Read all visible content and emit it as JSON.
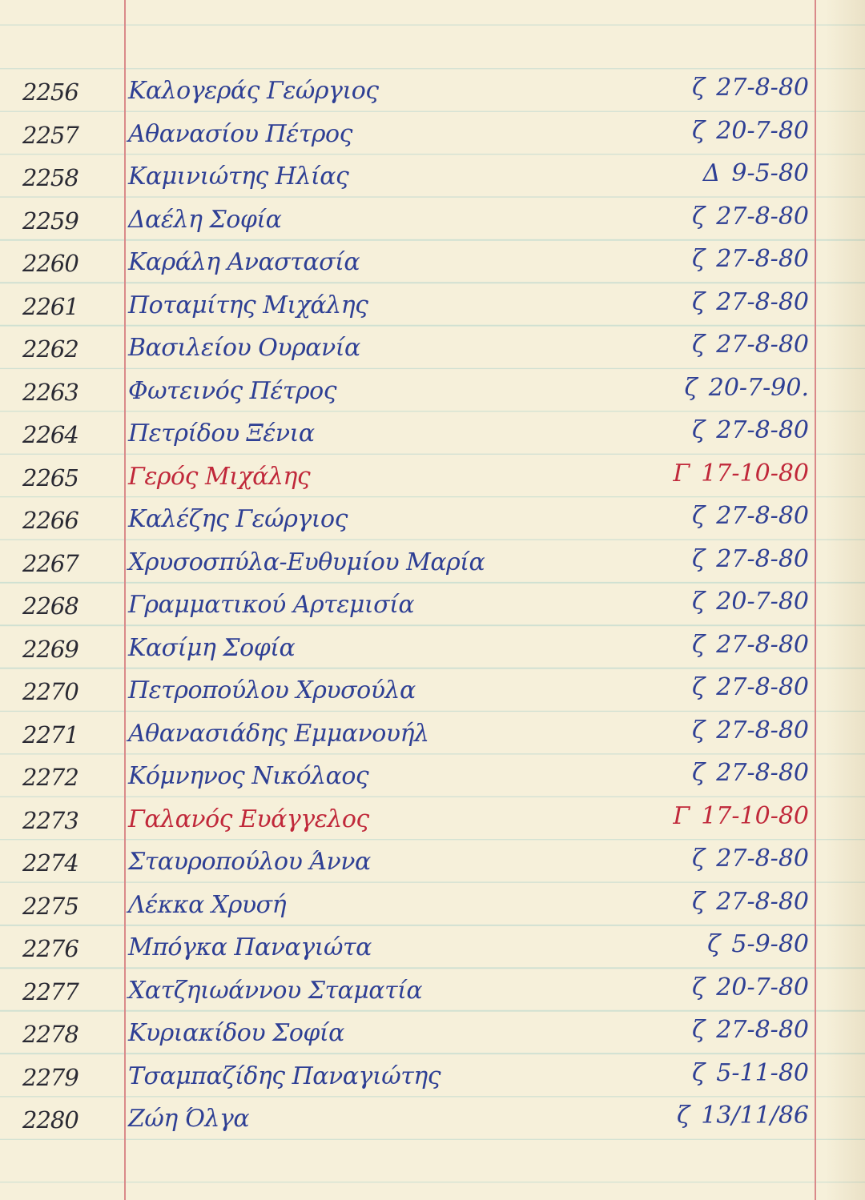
{
  "colors": {
    "paper": "#f6f0da",
    "ink_blue": "#2e3f94",
    "ink_red": "#c0283a",
    "ink_black": "#2a2a33",
    "margin_line": "#d98a8a"
  },
  "entries": [
    {
      "number": "2256",
      "name": "Καλογεράς Γεώργιος",
      "class": "ζ",
      "date": "27-8-80",
      "ink": "blue"
    },
    {
      "number": "2257",
      "name": "Αθανασίου Πέτρος",
      "class": "ζ",
      "date": "20-7-80",
      "ink": "blue"
    },
    {
      "number": "2258",
      "name": "Καμινιώτης Ηλίας",
      "class": "Δ",
      "date": "9-5-80",
      "ink": "blue"
    },
    {
      "number": "2259",
      "name": "Δαέλη Σοφία",
      "class": "ζ",
      "date": "27-8-80",
      "ink": "blue"
    },
    {
      "number": "2260",
      "name": "Καράλη Αναστασία",
      "class": "ζ",
      "date": "27-8-80",
      "ink": "blue"
    },
    {
      "number": "2261",
      "name": "Ποταμίτης Μιχάλης",
      "class": "ζ",
      "date": "27-8-80",
      "ink": "blue"
    },
    {
      "number": "2262",
      "name": "Βασιλείου Ουρανία",
      "class": "ζ",
      "date": "27-8-80",
      "ink": "blue"
    },
    {
      "number": "2263",
      "name": "Φωτεινός Πέτρος",
      "class": "ζ",
      "date": "20-7-90.",
      "ink": "blue"
    },
    {
      "number": "2264",
      "name": "Πετρίδου Ξένια",
      "class": "ζ",
      "date": "27-8-80",
      "ink": "blue"
    },
    {
      "number": "2265",
      "name": "Γερός Μιχάλης",
      "class": "Γ",
      "date": "17-10-80",
      "ink": "red"
    },
    {
      "number": "2266",
      "name": "Καλέζης Γεώργιος",
      "class": "ζ",
      "date": "27-8-80",
      "ink": "blue"
    },
    {
      "number": "2267",
      "name": "Χρυσοσπύλα-Ευθυμίου Μαρία",
      "class": "ζ",
      "date": "27-8-80",
      "ink": "blue"
    },
    {
      "number": "2268",
      "name": "Γραμματικού Αρτεμισία",
      "class": "ζ",
      "date": "20-7-80",
      "ink": "blue"
    },
    {
      "number": "2269",
      "name": "Κασίμη Σοφία",
      "class": "ζ",
      "date": "27-8-80",
      "ink": "blue"
    },
    {
      "number": "2270",
      "name": "Πετροπούλου Χρυσούλα",
      "class": "ζ",
      "date": "27-8-80",
      "ink": "blue"
    },
    {
      "number": "2271",
      "name": "Αθανασιάδης Εμμανουήλ",
      "class": "ζ",
      "date": "27-8-80",
      "ink": "blue"
    },
    {
      "number": "2272",
      "name": "Κόμνηνος Νικόλαος",
      "class": "ζ",
      "date": "27-8-80",
      "ink": "blue"
    },
    {
      "number": "2273",
      "name": "Γαλανός Ευάγγελος",
      "class": "Γ",
      "date": "17-10-80",
      "ink": "red"
    },
    {
      "number": "2274",
      "name": "Σταυροπούλου Άννα",
      "class": "ζ",
      "date": "27-8-80",
      "ink": "blue"
    },
    {
      "number": "2275",
      "name": "Λέκκα Χρυσή",
      "class": "ζ",
      "date": "27-8-80",
      "ink": "blue"
    },
    {
      "number": "2276",
      "name": "Μπόγκα Παναγιώτα",
      "class": "ζ",
      "date": "5-9-80",
      "ink": "blue"
    },
    {
      "number": "2277",
      "name": "Χατζηιωάννου Σταματία",
      "class": "ζ",
      "date": "20-7-80",
      "ink": "blue"
    },
    {
      "number": "2278",
      "name": "Κυριακίδου Σοφία",
      "class": "ζ",
      "date": "27-8-80",
      "ink": "blue"
    },
    {
      "number": "2279",
      "name": "Τσαμπαζίδης Παναγιώτης",
      "class": "ζ",
      "date": "5-11-80",
      "ink": "blue"
    },
    {
      "number": "2280",
      "name": "Ζώη Όλγα",
      "class": "ζ",
      "date": "13/11/86",
      "ink": "blue"
    }
  ]
}
